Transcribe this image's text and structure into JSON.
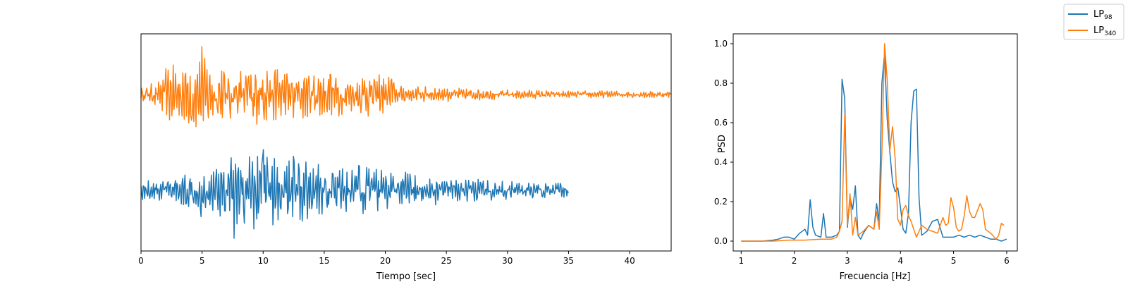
{
  "colors": {
    "lp98": "#1f77b4",
    "lp340": "#ff7f0e"
  },
  "legend": {
    "position": "top-right",
    "items": [
      {
        "base": "LP",
        "sub": "98",
        "color": "#1f77b4"
      },
      {
        "base": "LP",
        "sub": "340",
        "color": "#ff7f0e"
      }
    ]
  },
  "chart_data": [
    {
      "type": "line",
      "xlabel": "Tiempo [sec]",
      "ylabel": "",
      "xlim": [
        0,
        43.4
      ],
      "xticks": [
        "0",
        "5",
        "10",
        "15",
        "20",
        "25",
        "30",
        "35",
        "40"
      ],
      "yticks": [],
      "series": [
        {
          "name": "LP340",
          "color": "#ff7f0e",
          "duration": 43.4,
          "offset": 1.0,
          "envelope": [
            [
              0,
              0.12
            ],
            [
              1.5,
              0.22
            ],
            [
              2,
              0.45
            ],
            [
              5,
              0.62
            ],
            [
              8,
              0.5
            ],
            [
              12,
              0.45
            ],
            [
              15,
              0.4
            ],
            [
              20.5,
              0.35
            ],
            [
              21,
              0.15
            ],
            [
              25,
              0.12
            ],
            [
              30,
              0.08
            ],
            [
              35,
              0.06
            ],
            [
              40,
              0.06
            ],
            [
              43.4,
              0.06
            ]
          ],
          "peaks": [
            [
              5.0,
              1.0
            ],
            [
              5.1,
              -0.55
            ],
            [
              3.4,
              0.45
            ],
            [
              4.2,
              -0.42
            ],
            [
              10.3,
              0.48
            ],
            [
              12.5,
              -0.48
            ],
            [
              9.2,
              -0.45
            ],
            [
              15.5,
              0.42
            ],
            [
              16.2,
              -0.45
            ],
            [
              20.5,
              0.32
            ]
          ]
        },
        {
          "name": "LP98",
          "color": "#1f77b4",
          "duration": 35.0,
          "offset": -1.0,
          "envelope": [
            [
              0,
              0.15
            ],
            [
              2,
              0.22
            ],
            [
              4,
              0.3
            ],
            [
              6,
              0.4
            ],
            [
              9,
              0.65
            ],
            [
              12,
              0.6
            ],
            [
              15,
              0.45
            ],
            [
              18,
              0.4
            ],
            [
              22,
              0.3
            ],
            [
              26,
              0.2
            ],
            [
              30,
              0.15
            ],
            [
              35,
              0.13
            ]
          ],
          "peaks": [
            [
              7.6,
              -1.0
            ],
            [
              7.4,
              0.68
            ],
            [
              10.0,
              0.85
            ],
            [
              10.8,
              -0.72
            ],
            [
              12.5,
              0.71
            ],
            [
              12.4,
              -0.55
            ],
            [
              4.9,
              -0.55
            ],
            [
              16.5,
              0.45
            ],
            [
              17.8,
              0.52
            ],
            [
              8.9,
              0.7
            ],
            [
              9.5,
              -0.6
            ]
          ]
        }
      ]
    },
    {
      "type": "line",
      "xlabel": "Frecuencia [Hz]",
      "ylabel": "PSD",
      "xlim": [
        0.85,
        6.2
      ],
      "ylim": [
        -0.05,
        1.05
      ],
      "xticks": [
        1,
        2,
        3,
        4,
        5,
        6
      ],
      "yticks": [
        0.0,
        0.2,
        0.4,
        0.6,
        0.8,
        1.0
      ],
      "series": [
        {
          "name": "LP98",
          "color": "#1f77b4",
          "x": [
            1.0,
            1.2,
            1.4,
            1.6,
            1.7,
            1.8,
            1.9,
            2.0,
            2.1,
            2.2,
            2.25,
            2.3,
            2.35,
            2.4,
            2.5,
            2.55,
            2.6,
            2.65,
            2.7,
            2.8,
            2.85,
            2.9,
            2.95,
            3.0,
            3.05,
            3.1,
            3.15,
            3.2,
            3.25,
            3.3,
            3.35,
            3.4,
            3.5,
            3.55,
            3.6,
            3.65,
            3.7,
            3.75,
            3.8,
            3.85,
            3.9,
            3.95,
            4.0,
            4.05,
            4.1,
            4.15,
            4.2,
            4.25,
            4.3,
            4.35,
            4.4,
            4.45,
            4.5,
            4.6,
            4.7,
            4.8,
            4.9,
            5.0,
            5.1,
            5.2,
            5.3,
            5.4,
            5.5,
            5.6,
            5.7,
            5.8,
            5.9,
            6.0
          ],
          "y": [
            0.0,
            0.0,
            0.0,
            0.005,
            0.01,
            0.02,
            0.02,
            0.01,
            0.04,
            0.06,
            0.03,
            0.21,
            0.07,
            0.03,
            0.02,
            0.14,
            0.02,
            0.02,
            0.02,
            0.03,
            0.05,
            0.82,
            0.72,
            0.07,
            0.22,
            0.16,
            0.28,
            0.03,
            0.01,
            0.04,
            0.06,
            0.08,
            0.06,
            0.19,
            0.1,
            0.8,
            0.95,
            0.62,
            0.45,
            0.3,
            0.25,
            0.27,
            0.17,
            0.06,
            0.04,
            0.14,
            0.6,
            0.76,
            0.77,
            0.22,
            0.03,
            0.04,
            0.05,
            0.1,
            0.11,
            0.02,
            0.02,
            0.02,
            0.03,
            0.02,
            0.03,
            0.02,
            0.03,
            0.02,
            0.01,
            0.01,
            0.0,
            0.01
          ]
        },
        {
          "name": "LP340",
          "color": "#ff7f0e",
          "x": [
            1.0,
            1.3,
            1.6,
            1.9,
            2.2,
            2.5,
            2.7,
            2.8,
            2.85,
            2.9,
            2.95,
            3.0,
            3.05,
            3.1,
            3.15,
            3.2,
            3.25,
            3.3,
            3.4,
            3.5,
            3.55,
            3.6,
            3.65,
            3.7,
            3.75,
            3.8,
            3.85,
            3.9,
            3.95,
            4.0,
            4.05,
            4.1,
            4.15,
            4.2,
            4.3,
            4.4,
            4.5,
            4.6,
            4.7,
            4.8,
            4.85,
            4.9,
            4.95,
            5.0,
            5.05,
            5.1,
            5.15,
            5.2,
            5.25,
            5.3,
            5.35,
            5.4,
            5.5,
            5.55,
            5.6,
            5.7,
            5.8,
            5.85,
            5.9,
            5.95
          ],
          "y": [
            0.0,
            0.0,
            0.0,
            0.005,
            0.005,
            0.01,
            0.01,
            0.02,
            0.05,
            0.1,
            0.64,
            0.08,
            0.24,
            0.03,
            0.12,
            0.03,
            0.04,
            0.05,
            0.08,
            0.06,
            0.15,
            0.06,
            0.45,
            1.0,
            0.82,
            0.46,
            0.58,
            0.42,
            0.11,
            0.08,
            0.16,
            0.18,
            0.13,
            0.1,
            0.02,
            0.08,
            0.06,
            0.05,
            0.04,
            0.12,
            0.08,
            0.09,
            0.22,
            0.17,
            0.07,
            0.05,
            0.06,
            0.13,
            0.23,
            0.15,
            0.12,
            0.12,
            0.19,
            0.16,
            0.06,
            0.04,
            0.01,
            0.03,
            0.09,
            0.08
          ]
        }
      ]
    }
  ]
}
